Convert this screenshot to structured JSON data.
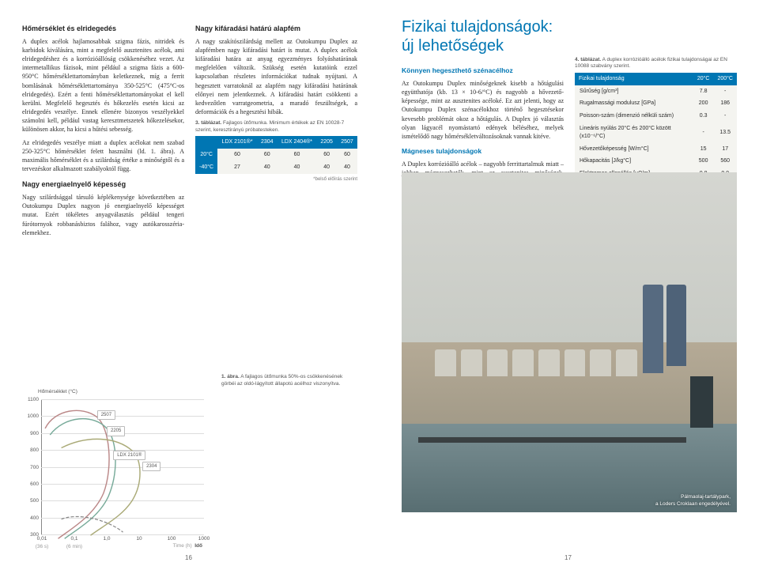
{
  "left": {
    "heading1": "Hőmérséklet és elridegedés",
    "p1": "A duplex acélok hajlamosabbak szigma fázis, nitridek és karbidok kiválására, mint a megfelelő ausztenites acélok, ami elridegedéshez és a korrózióállóság csökkenéséhez vezet. Az intermetallikus fázisok, mint például a szigma fázis a 600-950°C hőmérséklettartományban keletkeznek, míg a ferrit bomlásának hőmérséklettartománya 350-525°C (475°C-os elridegedés). Ezért a fenti hőmérséklettartományokat el kell kerülni. Megfelelő hegesztés és hőkezelés esetén kicsi az elridegedés veszélye. Ennek ellenére bizonyos veszélyekkel számolni kell, például vastag keresztmetszetek hőkezelésekor, különösen akkor, ha kicsi a hűtési sebesség.",
    "p2": "Az elridegedés veszélye miatt a duplex acélokat nem szabad 250-325°C hőmérséklet felett használni (ld. 1. ábra). A maximális hőmérséklet és a szilárdság értéke a minőségtől és a tervezéskor alkalmazott szabályoktól függ.",
    "heading2": "Nagy energiaelnyelő képesség",
    "p3": "Nagy szilárdsággal társuló képlékenysége következtében az Outokumpu Duplex nagyon jó energiaelnyelő képességet mutat. Ezért tökéletes anyagválasztás például tengeri fúrótornyok robbanásbiztos falához, vagy autókarosszéria-elemekhez.",
    "heading3": "Nagy kifáradási határú alapfém",
    "p4": "A nagy szakítószilárdság mellett az Outokumpu Duplex az alapfémben nagy kifáradási határt is mutat. A duplex acélok kifáradási határa az anyag egyezményes folyáshatárának megfelelően változik. Szükség esetén kutatóink ezzel kapcsolatban részletes információkat tudnak nyújtani. A hegesztett varratoknál az alapfém nagy kifáradási határának előnyei nem jelentkeznek. A kifáradási határt csökkenti a kedvezőtlen varratgeometria, a maradó feszültségek, a deformációk és a hegesztési hibák.",
    "table3": {
      "caption_bold": "3. táblázat.",
      "caption": " Fajlagos ütőmunka. Minimum értékek az EN 10028-7 szerint, keresztirányú próbatesteken.",
      "cols": [
        "LDX 2101®*",
        "2304",
        "LDX 2404®*",
        "2205",
        "2507"
      ],
      "rows": [
        {
          "h": "20°C",
          "cells": [
            "60",
            "60",
            "60",
            "60",
            "60"
          ]
        },
        {
          "h": "-40°C",
          "cells": [
            "27",
            "40",
            "40",
            "40",
            "40"
          ]
        }
      ],
      "footnote": "*belső előírás szerint"
    },
    "chart": {
      "y_label": "Hőmérséklet (°C)",
      "x_label_right": "Idő",
      "x_label_sub": "Time (h)",
      "ylim": [
        300,
        1100
      ],
      "ytick_step": 100,
      "yticks": [
        300,
        400,
        500,
        600,
        700,
        800,
        900,
        1000,
        1100
      ],
      "xticks": [
        "0,01",
        "0,1",
        "1,0",
        "10",
        "100",
        "1000"
      ],
      "xticks_sub": [
        "(36 s)",
        "(6 min)"
      ],
      "series_labels": [
        "2507",
        "2205",
        "LDX 2101®",
        "2304"
      ]
    },
    "fig1": {
      "caption_bold": "1. ábra.",
      "caption": " A fajlagos ütőmunka 50%-os csökkenésének görbéi az oldó-lágyított állapotú acélhoz viszonyítva."
    },
    "page_num": "16"
  },
  "right": {
    "main_heading": "Fizikai tulajdonságok: új lehetőségek",
    "section1_heading": "Könnyen hegeszthető szénacélhoz",
    "section1_body": "Az Outokumpu Duplex minőségeknek kisebb a hőtágulási együtthatója (kb. 13 × 10-6/°C) és nagyobb a hővezető-képessége, mint az ausztenites acéloké. Ez azt jelenti, hogy az Outokumpu Duplex szénacélokhoz történő hegesztésekor kevesebb problémát okoz a hőtágulás. A Duplex jó választás olyan lágyacél nyomástartó edények béléséhez, melyek ismételődő nagy hőmérsékletváltozásoknak vannak kitéve.",
    "section2_heading": "Mágneses tulajdonságok",
    "section2_body": "A Duplex korrózióálló acélok – nagyobb ferrittartalmuk miatt – jobban mágnesezhetők, mint az ausztenites minőségek. Biztonsági okokból a duplex lemezeket tilos mágnessel emelni.",
    "table4": {
      "caption_bold": "4. táblázat.",
      "caption": " A duplex korrózióálló acélok fizikai tulajdonságai az EN 10088 szabvány szerint.",
      "head": [
        "Fizikai tulajdonság",
        "20°C",
        "200°C"
      ],
      "rows": [
        [
          "Sűrűség [g/cm³]",
          "7.8",
          "-"
        ],
        [
          "Rugalmassági modulusz [GPa]",
          "200",
          "186"
        ],
        [
          "Poisson-szám (dimenzió nélküli szám)",
          "0.3",
          "-"
        ],
        [
          "Lineáris nyúlás 20°C és 200°C között (x10⁻⁶/°C)",
          "-",
          "13.5"
        ],
        [
          "Hővezetőképesség [W/m°C]",
          "15",
          "17"
        ],
        [
          "Hőkapacitás [J/kg°C]",
          "500",
          "560"
        ],
        [
          "Elektromos ellenállás [μΩ/m]",
          "0.8",
          "0.9"
        ]
      ]
    },
    "photo_credit": "Pálmaolaj-tartálypark,\na Loders Croklaan engedélyével.",
    "page_num": "17"
  }
}
